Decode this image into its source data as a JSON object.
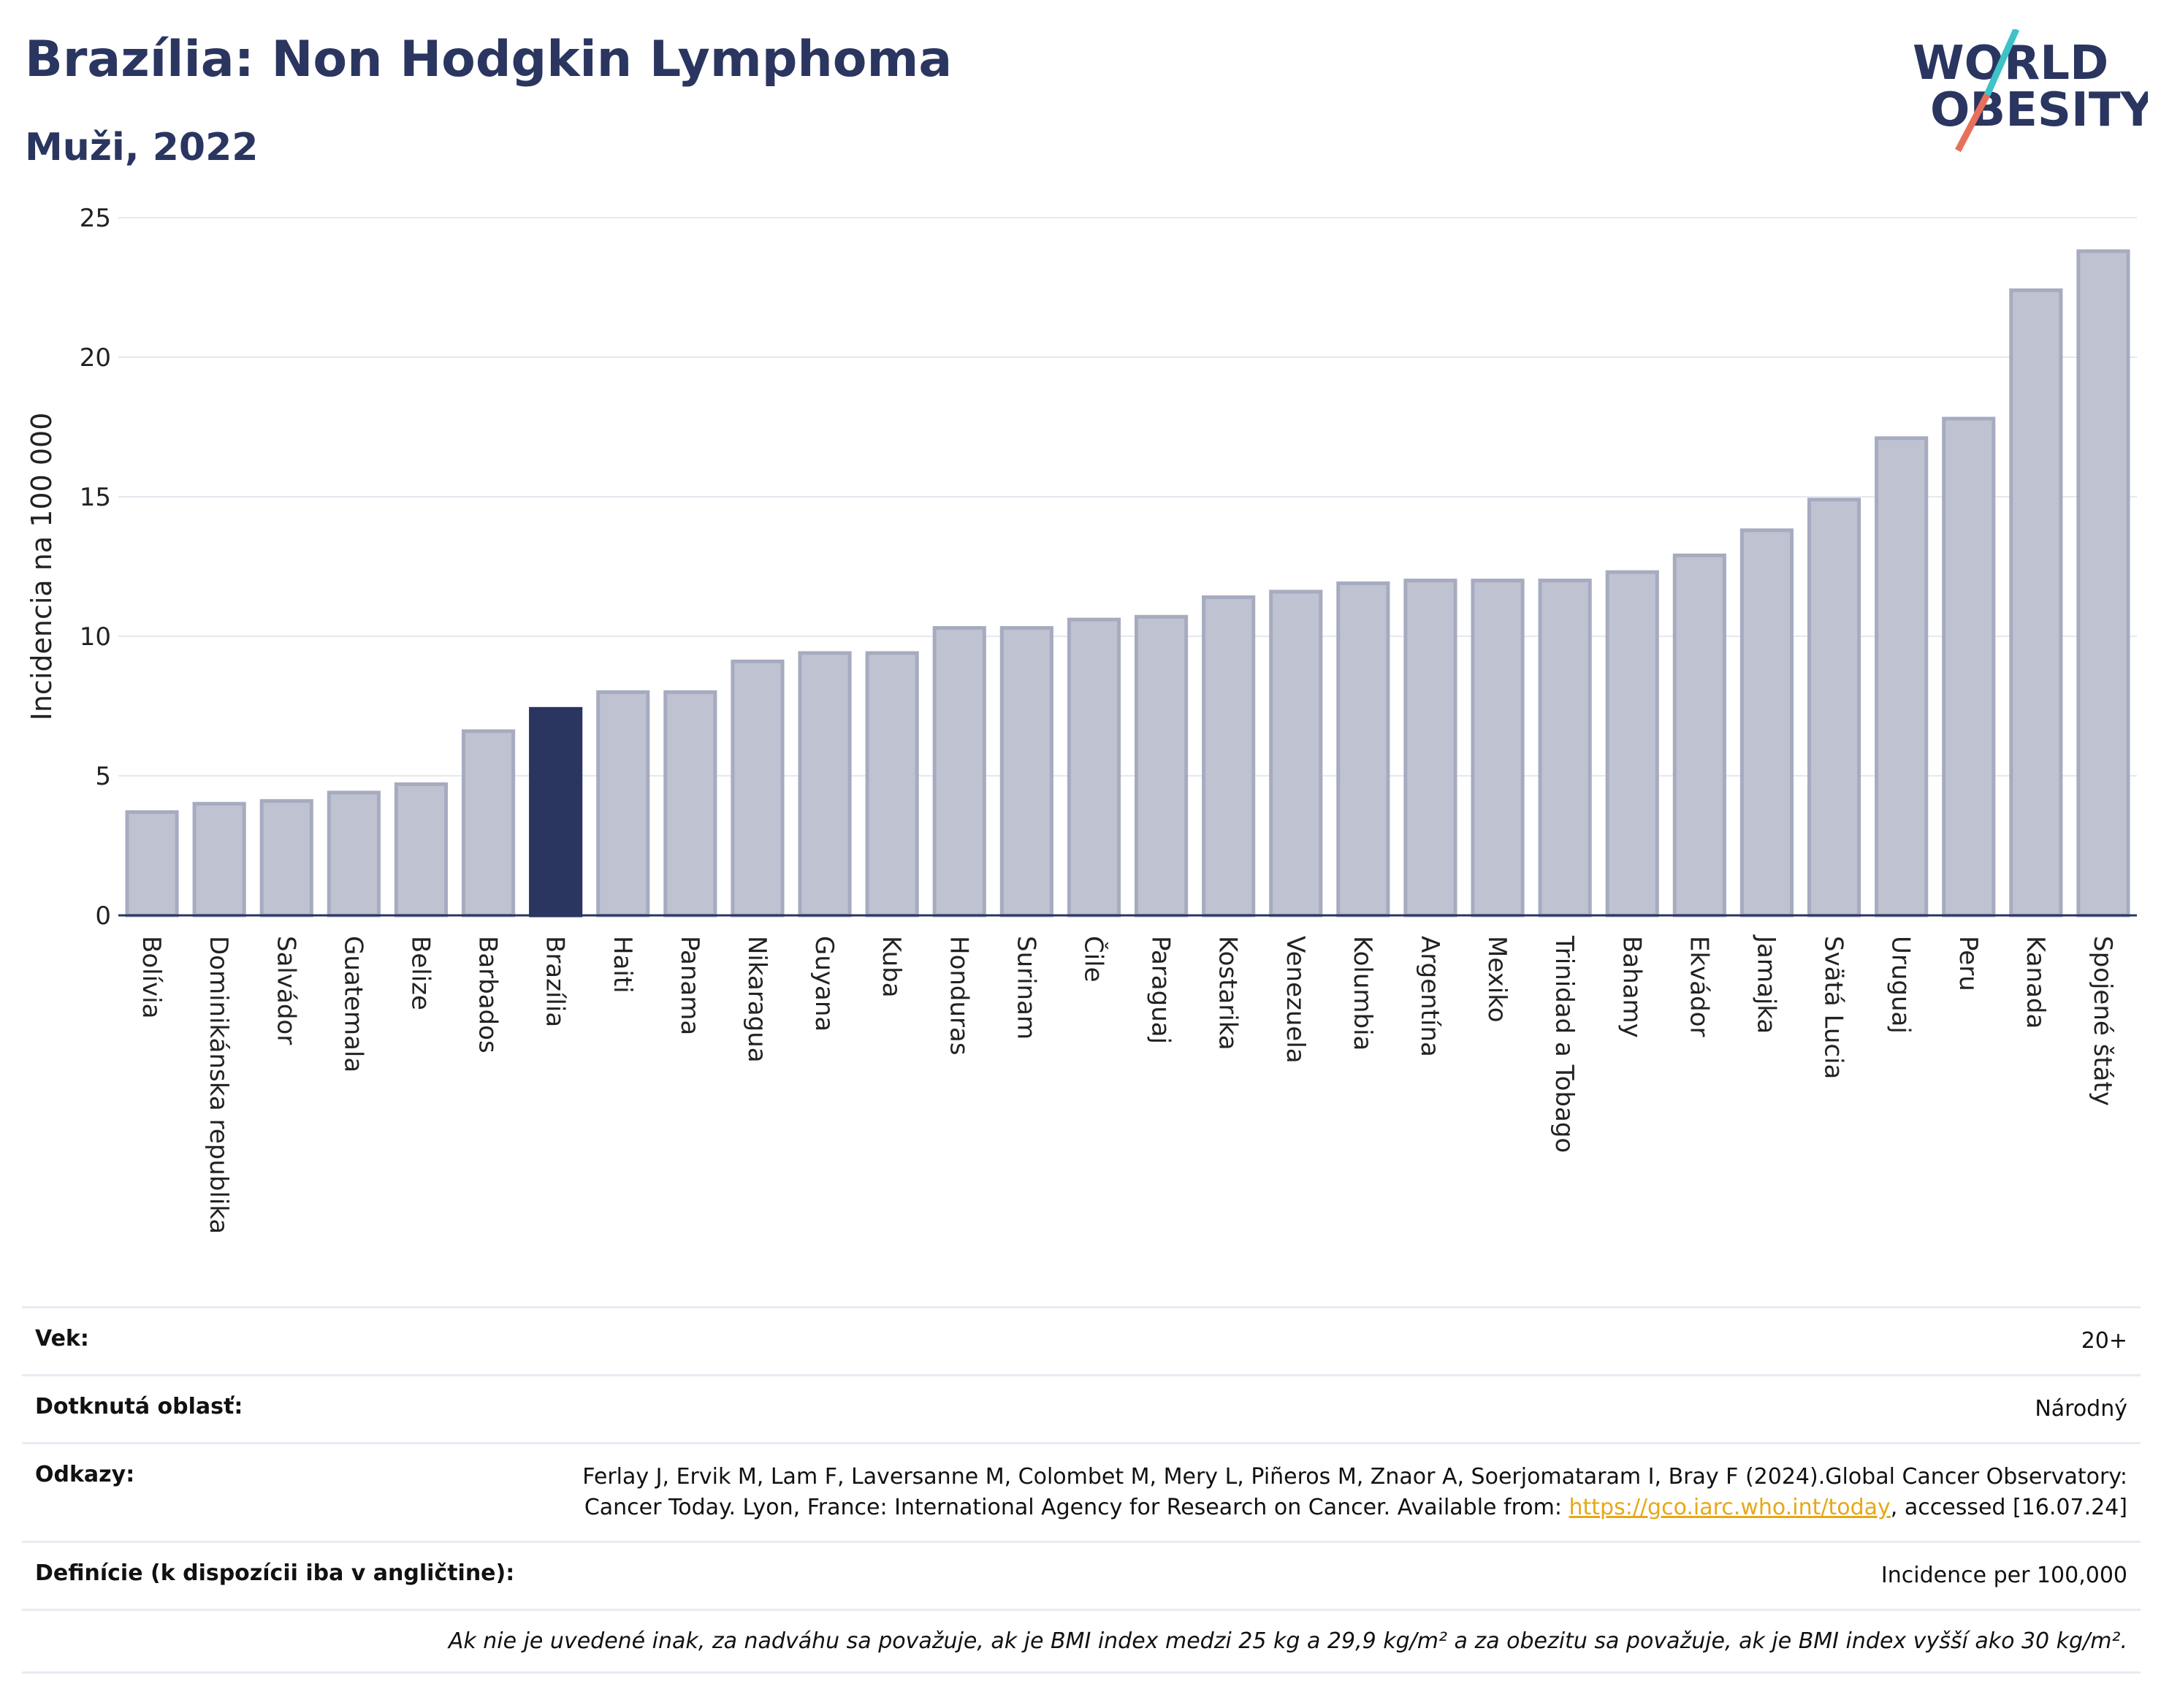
{
  "header": {
    "title": "Brazília: Non Hodgkin Lymphoma",
    "subtitle": "Muži, 2022"
  },
  "logo": {
    "line1": "WORLD",
    "line2": "OBESITY"
  },
  "colors": {
    "bar": "#bfc3d1",
    "bar_stroke": "#a6abc0",
    "highlight": "#2a3560",
    "text": "#2a3560",
    "link": "#e6a817",
    "logo_slash_top": "#3ec2c8",
    "logo_slash_bottom": "#e8705a"
  },
  "chart_data": {
    "type": "bar",
    "ylabel": "Incidencia na 100 000",
    "ylim": [
      0,
      25
    ],
    "yticks": [
      0,
      5,
      10,
      15,
      20,
      25
    ],
    "grid": true,
    "highlight": "Brazília",
    "categories": [
      "Bolívia",
      "Dominikánska republika",
      "Salvádor",
      "Guatemala",
      "Belize",
      "Barbados",
      "Brazília",
      "Haiti",
      "Panama",
      "Nikaragua",
      "Guyana",
      "Kuba",
      "Honduras",
      "Surinam",
      "Čile",
      "Paraguaj",
      "Kostarika",
      "Venezuela",
      "Kolumbia",
      "Argentína",
      "Mexiko",
      "Trinidad a Tobago",
      "Bahamy",
      "Ekvádor",
      "Jamajka",
      "Svätá Lucia",
      "Uruguaj",
      "Peru",
      "Kanada",
      "Spojené štáty"
    ],
    "values": [
      3.7,
      4.0,
      4.1,
      4.4,
      4.7,
      6.6,
      7.4,
      8.0,
      8.0,
      9.1,
      9.4,
      9.4,
      10.3,
      10.3,
      10.6,
      10.7,
      11.4,
      11.6,
      11.9,
      12.0,
      12.0,
      12.0,
      12.3,
      12.9,
      13.8,
      14.9,
      17.1,
      17.8,
      22.4,
      23.8
    ]
  },
  "meta": {
    "age_label": "Vek:",
    "age_value": "20+",
    "area_label": "Dotknutá oblasť:",
    "area_value": "Národný",
    "ref_label": "Odkazy:",
    "ref_text_1": "Ferlay J, Ervik M, Lam F, Laversanne M, Colombet M, Mery L, Piñeros M, Znaor A, Soerjomataram I, Bray F (2024).Global Cancer Observatory: Cancer Today. Lyon, France: International Agency for Research on Cancer. Available from: ",
    "ref_link": "https://gco.iarc.who.int/today",
    "ref_text_2": ", accessed [16.07.24]",
    "def_label": "Definície (k dispozícii iba v angličtine):",
    "def_value": "Incidence per 100,000",
    "note": "Ak nie je uvedené inak, za nadváhu sa považuje, ak je BMI index medzi 25 kg a 29,9 kg/m² a za obezitu sa považuje, ak je BMI index vyšší ako 30 kg/m²."
  }
}
